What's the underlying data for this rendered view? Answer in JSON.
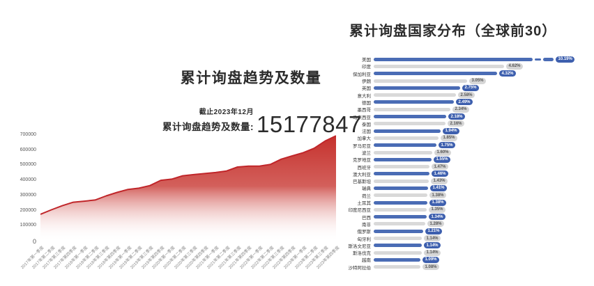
{
  "left_chart": {
    "title": "累计询盘趋势及数量",
    "asof": "截止2023年12月",
    "total_label": "累计询盘趋势及数量:",
    "total_value": "15177847"
  },
  "right_chart": {
    "title": "累计询盘国家分布（全球前30）"
  },
  "colors": {
    "area_red": "#c5302c",
    "area_stroke": "#c0262a",
    "bar_blue": "#4a6cb5",
    "bar_gray": "#d9d9d9",
    "pill_blue": "#3d5fae",
    "pill_gray": "#d6d6d6",
    "title_dark": "#2b2b2b"
  },
  "chart_data": [
    {
      "type": "area",
      "title": "累计询盘趋势及数量",
      "x": [
        "2017年第一季度",
        "2017年第二季度",
        "2017年第三季度",
        "2017年第四季度",
        "2018年第一季度",
        "2018年第二季度",
        "2018年第三季度",
        "2018年第四季度",
        "2019年第一季度",
        "2019年第二季度",
        "2019年第三季度",
        "2019年第四季度",
        "2020年第一季度",
        "2020年第二季度",
        "2020年第三季度",
        "2020年第四季度",
        "2021年第一季度",
        "2021年第二季度",
        "2021年第三季度",
        "2021年第四季度",
        "2022年第一季度",
        "2022年第二季度",
        "2022年第三季度",
        "2022年第四季度",
        "2023年第一季度",
        "2023年第二季度",
        "2023年第三季度",
        "2023年第四季度"
      ],
      "values": [
        175000,
        205000,
        232000,
        255000,
        262000,
        270000,
        297000,
        320000,
        340000,
        348000,
        365000,
        400000,
        408000,
        430000,
        438000,
        445000,
        452000,
        462000,
        488000,
        494000,
        494000,
        505000,
        540000,
        562000,
        583000,
        612000,
        660000,
        695000
      ],
      "ylim": [
        0,
        700000
      ],
      "yticks": [
        "0",
        "100000",
        "200000",
        "300000",
        "400000",
        "500000",
        "600000",
        "700000"
      ],
      "grid": false,
      "legend": "none",
      "annotation_asof": "截止2023年12月",
      "annotation_total": "累计询盘趋势及数量: 15177847"
    },
    {
      "type": "bar",
      "orientation": "horizontal",
      "title": "累计询盘国家分布（全球前30）",
      "categories": [
        "美国",
        "印度",
        "保加利亚",
        "伊朗",
        "英国",
        "意大利",
        "德国",
        "墨西哥",
        "马来西亚",
        "泰国",
        "法国",
        "加拿大",
        "罗马尼亚",
        "波兰",
        "克罗地亚",
        "西班牙",
        "澳大利亚",
        "巴基斯坦",
        "瑞典",
        "荷兰",
        "土耳其",
        "印度尼西亚",
        "巴西",
        "南非",
        "俄罗斯",
        "匈牙利",
        "斯洛文尼亚",
        "斯洛伐克",
        "越南",
        "沙特阿拉伯"
      ],
      "values": [
        10.19,
        4.62,
        4.32,
        3.05,
        2.75,
        2.58,
        2.49,
        2.34,
        2.18,
        2.16,
        1.94,
        1.85,
        1.75,
        1.6,
        1.55,
        1.47,
        1.46,
        1.43,
        1.41,
        1.38,
        1.38,
        1.35,
        1.34,
        1.28,
        1.21,
        1.14,
        1.14,
        1.14,
        1.09,
        1.08
      ],
      "labels": [
        "10.19%",
        "4.62%",
        "4.32%",
        "3.05%",
        "2.75%",
        "2.58%",
        "2.49%",
        "2.34%",
        "2.18%",
        "2.16%",
        "1.94%",
        "1.85%",
        "1.75%",
        "1.60%",
        "1.55%",
        "1.47%",
        "1.46%",
        "1.43%",
        "1.41%",
        "1.38%",
        "1.38%",
        "1.35%",
        "1.34%",
        "1.28%",
        "1.21%",
        "1.14%",
        "1.14%",
        "1.14%",
        "1.09%",
        "1.08%"
      ],
      "axis_break_on_first_bar": true,
      "bar_style": "alternating blue/gray",
      "grid": false,
      "legend": "none"
    }
  ]
}
